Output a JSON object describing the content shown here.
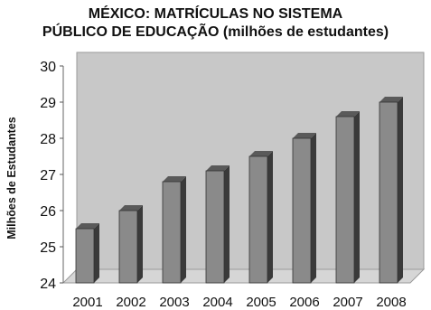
{
  "chart_data": {
    "type": "bar",
    "title_lines": [
      "MÉXICO: MATRÍCULAS NO SISTEMA",
      "PÚBLICO DE EDUCAÇÃO (milhões de estudantes)"
    ],
    "xlabel": "",
    "ylabel": "Milhões de Estudantes",
    "categories": [
      "2001",
      "2002",
      "2003",
      "2004",
      "2005",
      "2006",
      "2007",
      "2008"
    ],
    "values": [
      25.5,
      26.0,
      26.8,
      27.1,
      27.5,
      28.0,
      28.6,
      29.0
    ],
    "ylim": [
      24,
      30
    ],
    "yticks": [
      "24",
      "25",
      "26",
      "27",
      "28",
      "29",
      "30"
    ],
    "grid": false,
    "legend": "none",
    "colors": {
      "bar_front": "#8a8a8a",
      "bar_side": "#3a3a3a",
      "bar_top": "#5a5a5a",
      "wall": "#c8c8c8",
      "floor": "#d6d6d6"
    }
  }
}
